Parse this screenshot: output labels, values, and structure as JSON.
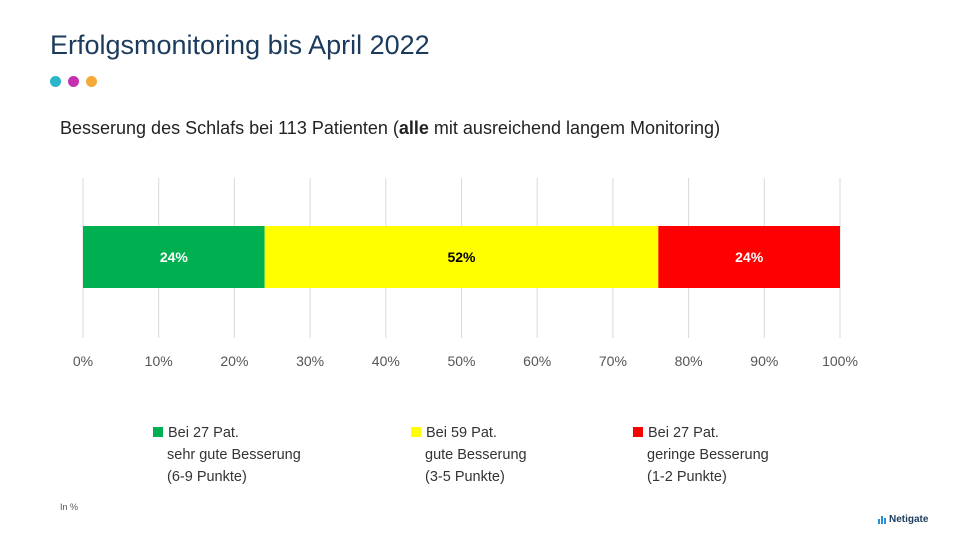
{
  "title": "Erfolgsmonitoring bis April 2022",
  "dots": [
    "#2bb5c9",
    "#c530b0",
    "#f4a93a"
  ],
  "subtitle": {
    "before": "Besserung des Schlafs bei 113 Patienten (",
    "bold": "alle",
    "after": " mit ausreichend langem Monitoring)"
  },
  "chart_data": {
    "type": "bar",
    "orientation": "horizontal-stacked-100",
    "title": "",
    "xlabel": "",
    "ylabel": "",
    "xlim": [
      0,
      100
    ],
    "ticks": [
      "0%",
      "10%",
      "20%",
      "30%",
      "40%",
      "50%",
      "60%",
      "70%",
      "80%",
      "90%",
      "100%"
    ],
    "grid": true,
    "legend_position": "bottom",
    "series": [
      {
        "name": "Bei 27 Pat. sehr gute Besserung (6-9 Punkte)",
        "value": 24,
        "label": "24%",
        "color": "#00b050",
        "label_color": "#ffffff"
      },
      {
        "name": "Bei 59 Pat. gute Besserung (3-5 Punkte)",
        "value": 52,
        "label": "52%",
        "color": "#ffff00",
        "label_color": "#000000"
      },
      {
        "name": "Bei 27 Pat. geringe Besserung (1-2 Punkte)",
        "value": 24,
        "label": "24%",
        "color": "#ff0000",
        "label_color": "#ffffff"
      }
    ]
  },
  "legend": [
    {
      "line1": "Bei 27 Pat.",
      "line2": "sehr gute Besserung",
      "line3": "(6-9 Punkte)",
      "color": "#00b050"
    },
    {
      "line1": "Bei 59 Pat.",
      "line2": "gute Besserung",
      "line3": "(3-5 Punkte)",
      "color": "#ffff00"
    },
    {
      "line1": "Bei 27 Pat.",
      "line2": "geringe Besserung",
      "line3": "(1-2 Punkte)",
      "color": "#ff0000"
    }
  ],
  "footnote": "In %",
  "logo": "Netigate"
}
